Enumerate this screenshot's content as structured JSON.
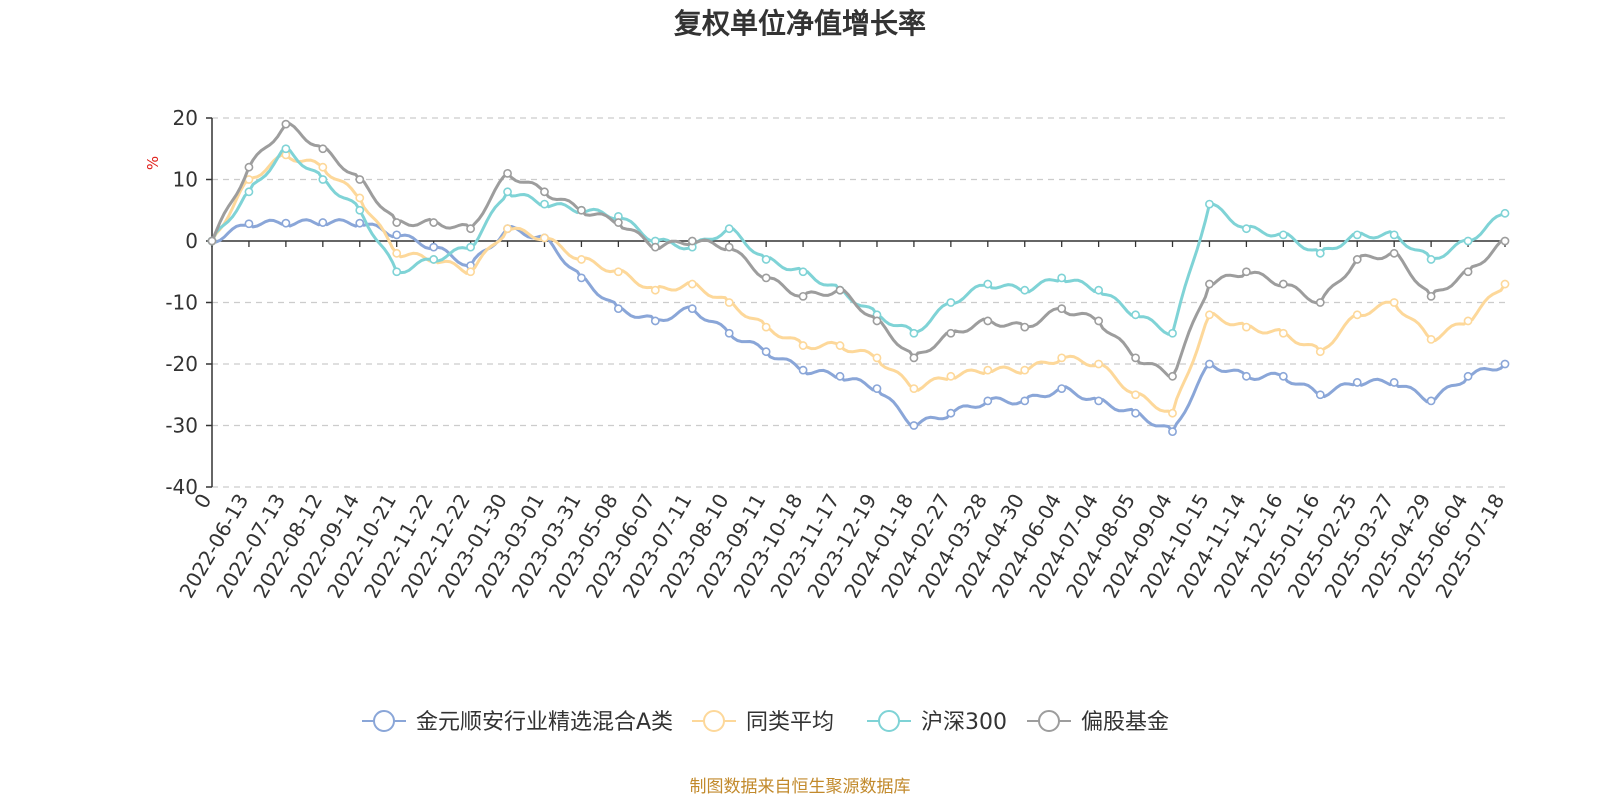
{
  "chart_data": {
    "type": "line",
    "title": "复权单位净值增长率",
    "ylabel": "%",
    "ylim": [
      -40,
      20
    ],
    "y_ticks": [
      20,
      10,
      0,
      -10,
      -20,
      -30,
      -40
    ],
    "grid": true,
    "legend_position": "bottom",
    "x_ticks": [
      "0",
      "2022-06-13",
      "2022-07-13",
      "2022-08-12",
      "2022-09-14",
      "2022-10-21",
      "2022-11-22",
      "2022-12-22",
      "2023-01-30",
      "2023-03-01",
      "2023-03-31",
      "2023-05-08",
      "2023-06-07",
      "2023-07-11",
      "2023-08-10",
      "2023-09-11",
      "2023-10-18",
      "2023-11-17",
      "2023-12-19",
      "2024-01-18",
      "2024-02-27",
      "2024-03-28",
      "2024-04-30",
      "2024-06-04",
      "2024-07-04",
      "2024-08-05",
      "2024-09-04",
      "2024-10-15",
      "2024-11-14",
      "2024-12-16",
      "2025-01-16",
      "2025-02-25",
      "2025-03-27",
      "2025-04-29",
      "2025-06-04",
      "2025-07-18"
    ],
    "series": [
      {
        "name": "金元顺安行业精选混合A类",
        "color": "#8aa6d8",
        "values": [
          0,
          2.8,
          2.9,
          3.0,
          2.9,
          1.0,
          -1.0,
          -4.0,
          2.0,
          0.5,
          -6.0,
          -11.0,
          -13.0,
          -11.0,
          -15.0,
          -18.0,
          -21.0,
          -22.0,
          -24.0,
          -30.0,
          -28.0,
          -26.0,
          -26.0,
          -24.0,
          -26.0,
          -28.0,
          -31.0,
          -20.0,
          -22.0,
          -22.0,
          -25.0,
          -23.0,
          -23.0,
          -26.0,
          -22.0,
          -20.0
        ]
      },
      {
        "name": "同类平均",
        "color": "#fdd89a",
        "values": [
          0,
          10.0,
          14.0,
          12.0,
          7.0,
          -2.0,
          -3.0,
          -5.0,
          2.0,
          0.5,
          -3.0,
          -5.0,
          -8.0,
          -7.0,
          -10.0,
          -14.0,
          -17.0,
          -17.0,
          -19.0,
          -24.0,
          -22.0,
          -21.0,
          -21.0,
          -19.0,
          -20.0,
          -25.0,
          -28.0,
          -12.0,
          -14.0,
          -15.0,
          -18.0,
          -12.0,
          -10.0,
          -16.0,
          -13.0,
          -7.0
        ]
      },
      {
        "name": "沪深300",
        "color": "#7fd3d6",
        "values": [
          0,
          8.0,
          15.0,
          10.0,
          5.0,
          -5.0,
          -3.0,
          -1.0,
          8.0,
          6.0,
          5.0,
          4.0,
          0,
          -1.0,
          2.0,
          -3.0,
          -5.0,
          -8.0,
          -12.0,
          -15.0,
          -10.0,
          -7.0,
          -8.0,
          -6.0,
          -8.0,
          -12.0,
          -15.0,
          6.0,
          2.0,
          1.0,
          -2.0,
          1.0,
          1.0,
          -3.0,
          0,
          4.5
        ]
      },
      {
        "name": "偏股基金",
        "color": "#9d9d9d",
        "values": [
          0,
          12.0,
          19.0,
          15.0,
          10.0,
          3.0,
          3.0,
          2.0,
          11.0,
          8.0,
          5.0,
          3.0,
          -1.0,
          0,
          -1.0,
          -6.0,
          -9.0,
          -8.0,
          -13.0,
          -19.0,
          -15.0,
          -13.0,
          -14.0,
          -11.0,
          -13.0,
          -19.0,
          -22.0,
          -7.0,
          -5.0,
          -7.0,
          -10.0,
          -3.0,
          -2.0,
          -9.0,
          -5.0,
          0
        ]
      }
    ]
  },
  "footer": {
    "source": "制图数据来自恒生聚源数据库"
  }
}
